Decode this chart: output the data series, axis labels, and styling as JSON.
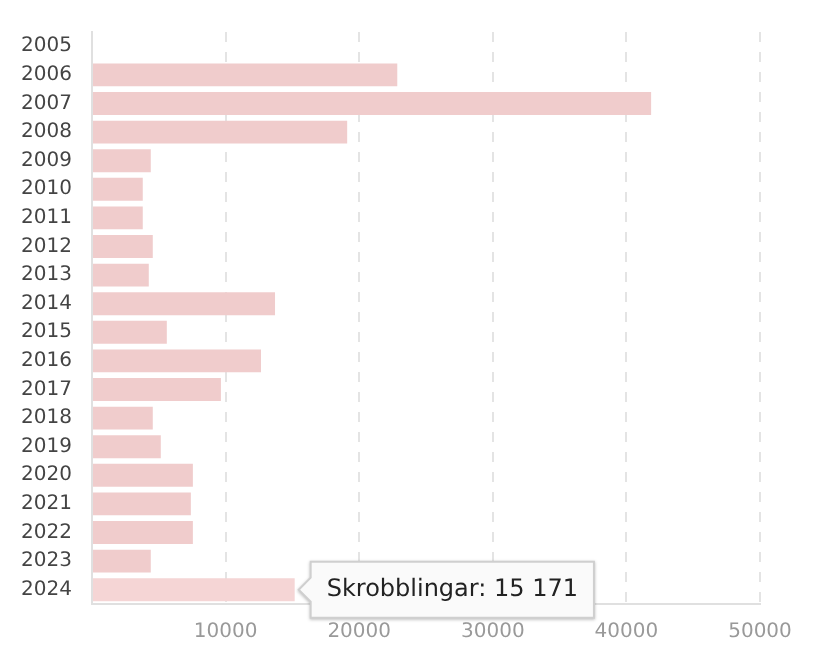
{
  "chart_data": {
    "type": "bar",
    "orientation": "horizontal",
    "categories": [
      "2005",
      "2006",
      "2007",
      "2008",
      "2009",
      "2010",
      "2011",
      "2012",
      "2013",
      "2014",
      "2015",
      "2016",
      "2017",
      "2018",
      "2019",
      "2020",
      "2021",
      "2022",
      "2023",
      "2024"
    ],
    "values": [
      0,
      22850,
      41850,
      19100,
      4400,
      3800,
      3800,
      4550,
      4250,
      13700,
      5600,
      12650,
      9650,
      4550,
      5150,
      7550,
      7400,
      7550,
      4400,
      15171
    ],
    "colors": [
      "#f0cccc",
      "#f0cccc",
      "#f0cccc",
      "#f0cccc",
      "#f0cccc",
      "#f0cccc",
      "#f0cccc",
      "#f0cccc",
      "#f0cccc",
      "#f0cccc",
      "#f0cccc",
      "#f0cccc",
      "#f0cccc",
      "#f0cccc",
      "#f0cccc",
      "#f0cccc",
      "#f0cccc",
      "#f0cccc",
      "#f0cccc",
      "#f5d5d5"
    ],
    "xlim": [
      0,
      50000
    ],
    "xticks": [
      {
        "value": 0,
        "label": null
      },
      10000,
      20000,
      30000,
      40000,
      50000
    ],
    "grid": "x",
    "legend": false,
    "annotations": [
      {
        "text": "Skrobblingar: 15 171",
        "x": 15171,
        "y": "2024"
      }
    ]
  }
}
